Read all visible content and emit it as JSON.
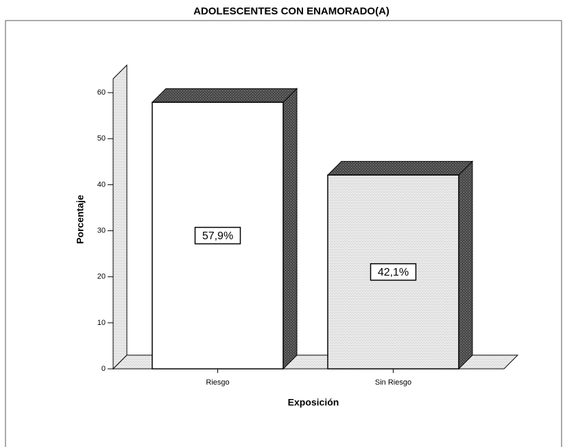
{
  "chart_data": {
    "type": "bar3d",
    "title": "ADOLESCENTES CON ENAMORADO(A)",
    "x_label": "Exposición",
    "y_label": "Porcentaje",
    "categories": [
      "Riesgo",
      "Sin Riesgo"
    ],
    "values": [
      57.9,
      42.1
    ],
    "value_labels": [
      "57,9%",
      "42,1%"
    ],
    "colors": [
      "#ffffff",
      "#e4e4e4"
    ],
    "ylim": [
      0,
      63
    ],
    "yticks": [
      0,
      10,
      20,
      30,
      40,
      50,
      60
    ]
  }
}
